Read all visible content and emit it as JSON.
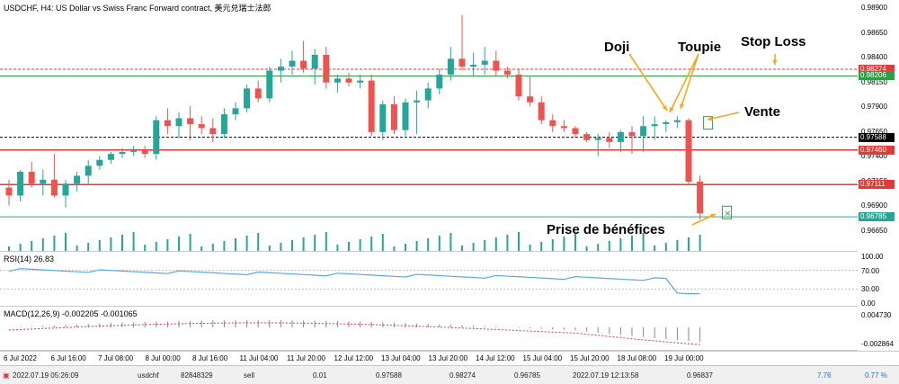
{
  "chart_header": "USDCHF, H4:  US Dollar vs Swiss Franc Forward contract, 美元兑瑞士法郎",
  "rsi_label": "RSI(14) 26.83",
  "macd_label": "MACD(12,26,9) -0.002205 -0.001065",
  "annotations": {
    "doji": "Doji",
    "toupie": "Toupie",
    "stop_loss": "Stop Loss",
    "vente": "Vente",
    "prise": "Prise de bénéfices"
  },
  "price_axis": [
    "0.98900",
    "0.98650",
    "0.98400",
    "0.98150",
    "0.97900",
    "0.97650",
    "0.97400",
    "0.97150",
    "0.96900",
    "0.96650"
  ],
  "price_tags": [
    {
      "value": "0.98274",
      "color": "#e53935"
    },
    {
      "value": "0.98206",
      "color": "#2e9e44"
    },
    {
      "value": "0.97588",
      "color": "#000000"
    },
    {
      "value": "0.97460",
      "color": "#e53935"
    },
    {
      "value": "0.97111",
      "color": "#e53935"
    },
    {
      "value": "0.96785",
      "color": "#26a69a"
    }
  ],
  "rsi_axis": [
    "100.00",
    "70.00",
    "30.00",
    "0.00"
  ],
  "macd_axis": [
    "0.004730",
    "-0.002864"
  ],
  "time_axis": [
    "6 Jul 2022",
    "6 Jul 16:00",
    "7 Jul 08:00",
    "8 Jul 00:00",
    "8 Jul 16:00",
    "11 Jul 04:00",
    "11 Jul 20:00",
    "12 Jul 12:00",
    "13 Jul 04:00",
    "13 Jul 20:00",
    "14 Jul 12:00",
    "15 Jul 04:00",
    "15 Jul 20:00",
    "18 Jul 08:00",
    "19 Jul 00:00"
  ],
  "status": {
    "time_open": "2022.07.19 05:26:09",
    "symbol": "usdchf",
    "ticket": "82848329",
    "type": "sell",
    "volume": "0.01",
    "price_open": "0.97588",
    "stop_loss": "0.98274",
    "take_profit": "0.96785",
    "time_close": "2022.07.19 12:13:58",
    "price_close": "0.96837",
    "profit": "7.76",
    "percent": "0.77 %"
  },
  "colors": {
    "bull": "#26a69a",
    "bear": "#ef5350",
    "rsi": "#5aa9e6",
    "macd": "#e53935",
    "levels_red": "#e53935",
    "level_green": "#2e9e44",
    "arrow": "#f5a623"
  },
  "candles": [
    {
      "o": 0.9708,
      "h": 0.9716,
      "l": 0.969,
      "c": 0.97
    },
    {
      "o": 0.97,
      "h": 0.9726,
      "l": 0.9694,
      "c": 0.9724
    },
    {
      "o": 0.9724,
      "h": 0.9734,
      "l": 0.9708,
      "c": 0.9712
    },
    {
      "o": 0.9712,
      "h": 0.9726,
      "l": 0.97,
      "c": 0.9716
    },
    {
      "o": 0.9716,
      "h": 0.9742,
      "l": 0.9698,
      "c": 0.97
    },
    {
      "o": 0.97,
      "h": 0.9716,
      "l": 0.9688,
      "c": 0.9712
    },
    {
      "o": 0.9712,
      "h": 0.9724,
      "l": 0.9704,
      "c": 0.972
    },
    {
      "o": 0.972,
      "h": 0.9736,
      "l": 0.9712,
      "c": 0.973
    },
    {
      "o": 0.973,
      "h": 0.974,
      "l": 0.9726,
      "c": 0.9736
    },
    {
      "o": 0.9736,
      "h": 0.9744,
      "l": 0.9732,
      "c": 0.9742
    },
    {
      "o": 0.9742,
      "h": 0.9748,
      "l": 0.9738,
      "c": 0.9744
    },
    {
      "o": 0.9744,
      "h": 0.975,
      "l": 0.974,
      "c": 0.9746
    },
    {
      "o": 0.9746,
      "h": 0.975,
      "l": 0.9738,
      "c": 0.9742
    },
    {
      "o": 0.9742,
      "h": 0.978,
      "l": 0.9736,
      "c": 0.9776
    },
    {
      "o": 0.9776,
      "h": 0.9788,
      "l": 0.9762,
      "c": 0.977
    },
    {
      "o": 0.977,
      "h": 0.9784,
      "l": 0.9758,
      "c": 0.9778
    },
    {
      "o": 0.9778,
      "h": 0.979,
      "l": 0.9756,
      "c": 0.9772
    },
    {
      "o": 0.9772,
      "h": 0.978,
      "l": 0.9762,
      "c": 0.9768
    },
    {
      "o": 0.9768,
      "h": 0.9778,
      "l": 0.9754,
      "c": 0.9762
    },
    {
      "o": 0.9762,
      "h": 0.9788,
      "l": 0.9758,
      "c": 0.9782
    },
    {
      "o": 0.9782,
      "h": 0.9794,
      "l": 0.9776,
      "c": 0.9788
    },
    {
      "o": 0.9788,
      "h": 0.9812,
      "l": 0.9784,
      "c": 0.9808
    },
    {
      "o": 0.9808,
      "h": 0.9816,
      "l": 0.9794,
      "c": 0.9798
    },
    {
      "o": 0.9798,
      "h": 0.983,
      "l": 0.9794,
      "c": 0.9826
    },
    {
      "o": 0.9826,
      "h": 0.9838,
      "l": 0.9814,
      "c": 0.983
    },
    {
      "o": 0.983,
      "h": 0.9846,
      "l": 0.9822,
      "c": 0.9836
    },
    {
      "o": 0.9836,
      "h": 0.9856,
      "l": 0.9824,
      "c": 0.9828
    },
    {
      "o": 0.9828,
      "h": 0.9848,
      "l": 0.9812,
      "c": 0.9842
    },
    {
      "o": 0.9842,
      "h": 0.985,
      "l": 0.9808,
      "c": 0.9814
    },
    {
      "o": 0.9814,
      "h": 0.9822,
      "l": 0.9804,
      "c": 0.9818
    },
    {
      "o": 0.9818,
      "h": 0.9824,
      "l": 0.981,
      "c": 0.9814
    },
    {
      "o": 0.9814,
      "h": 0.9822,
      "l": 0.9808,
      "c": 0.9816
    },
    {
      "o": 0.9816,
      "h": 0.9822,
      "l": 0.976,
      "c": 0.9764
    },
    {
      "o": 0.9764,
      "h": 0.9796,
      "l": 0.9756,
      "c": 0.9792
    },
    {
      "o": 0.9792,
      "h": 0.98,
      "l": 0.9762,
      "c": 0.9766
    },
    {
      "o": 0.9766,
      "h": 0.9798,
      "l": 0.976,
      "c": 0.9794
    },
    {
      "o": 0.9794,
      "h": 0.9806,
      "l": 0.9762,
      "c": 0.9796
    },
    {
      "o": 0.9796,
      "h": 0.9814,
      "l": 0.9788,
      "c": 0.9808
    },
    {
      "o": 0.9808,
      "h": 0.9828,
      "l": 0.9802,
      "c": 0.9822
    },
    {
      "o": 0.9822,
      "h": 0.985,
      "l": 0.9816,
      "c": 0.9838
    },
    {
      "o": 0.9838,
      "h": 0.9882,
      "l": 0.9826,
      "c": 0.983
    },
    {
      "o": 0.983,
      "h": 0.9844,
      "l": 0.982,
      "c": 0.9832
    },
    {
      "o": 0.9832,
      "h": 0.985,
      "l": 0.9822,
      "c": 0.9836
    },
    {
      "o": 0.9836,
      "h": 0.9846,
      "l": 0.982,
      "c": 0.9826
    },
    {
      "o": 0.9826,
      "h": 0.983,
      "l": 0.9818,
      "c": 0.9822
    },
    {
      "o": 0.9822,
      "h": 0.9828,
      "l": 0.9796,
      "c": 0.98
    },
    {
      "o": 0.98,
      "h": 0.982,
      "l": 0.979,
      "c": 0.9794
    },
    {
      "o": 0.9794,
      "h": 0.98,
      "l": 0.9772,
      "c": 0.9776
    },
    {
      "o": 0.9776,
      "h": 0.9782,
      "l": 0.9764,
      "c": 0.977
    },
    {
      "o": 0.977,
      "h": 0.9776,
      "l": 0.9764,
      "c": 0.9768
    },
    {
      "o": 0.9768,
      "h": 0.977,
      "l": 0.9758,
      "c": 0.9762
    },
    {
      "o": 0.9762,
      "h": 0.9764,
      "l": 0.9754,
      "c": 0.9756
    },
    {
      "o": 0.9756,
      "h": 0.9762,
      "l": 0.974,
      "c": 0.9758
    },
    {
      "o": 0.9758,
      "h": 0.9764,
      "l": 0.9748,
      "c": 0.9754
    },
    {
      "o": 0.9754,
      "h": 0.9766,
      "l": 0.9744,
      "c": 0.9764
    },
    {
      "o": 0.9764,
      "h": 0.977,
      "l": 0.9742,
      "c": 0.976
    },
    {
      "o": 0.976,
      "h": 0.978,
      "l": 0.9744,
      "c": 0.977
    },
    {
      "o": 0.977,
      "h": 0.978,
      "l": 0.9756,
      "c": 0.9772
    },
    {
      "o": 0.9772,
      "h": 0.9776,
      "l": 0.9764,
      "c": 0.9774
    },
    {
      "o": 0.9774,
      "h": 0.978,
      "l": 0.9768,
      "c": 0.9776
    },
    {
      "o": 0.9776,
      "h": 0.9778,
      "l": 0.971,
      "c": 0.9714
    },
    {
      "o": 0.9714,
      "h": 0.972,
      "l": 0.9676,
      "c": 0.9682
    }
  ]
}
